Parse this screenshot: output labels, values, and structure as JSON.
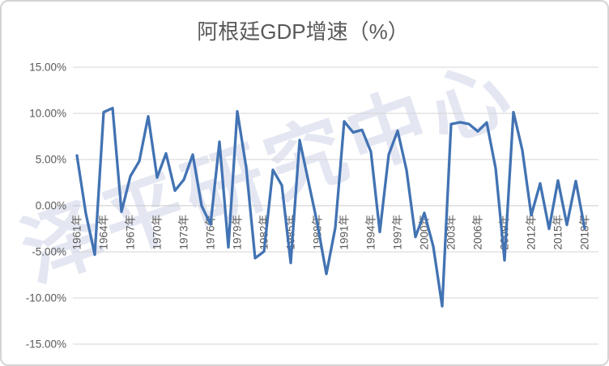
{
  "page": {
    "background": "#ffffff",
    "border_color": "#d4d4d4"
  },
  "chart_data": {
    "type": "line",
    "title": "阿根廷GDP增速（%）",
    "series_name": "阿根廷GDP增速",
    "unit": "%",
    "years": [
      1961,
      1962,
      1963,
      1964,
      1965,
      1966,
      1967,
      1968,
      1969,
      1970,
      1971,
      1972,
      1973,
      1974,
      1975,
      1976,
      1977,
      1978,
      1979,
      1980,
      1981,
      1982,
      1983,
      1984,
      1985,
      1986,
      1987,
      1988,
      1989,
      1990,
      1991,
      1992,
      1993,
      1994,
      1995,
      1996,
      1997,
      1998,
      1999,
      2000,
      2001,
      2002,
      2003,
      2004,
      2005,
      2006,
      2007,
      2008,
      2009,
      2010,
      2011,
      2012,
      2013,
      2014,
      2015,
      2016,
      2017,
      2018
    ],
    "values": [
      5.43,
      -0.85,
      -5.31,
      10.13,
      10.57,
      -0.66,
      3.19,
      4.82,
      9.68,
      3.05,
      5.66,
      1.63,
      2.81,
      5.53,
      -0.03,
      -2.02,
      6.93,
      -4.51,
      10.22,
      4.15,
      -5.69,
      -4.96,
      3.88,
      2.21,
      -6.2,
      7.1,
      2.56,
      -2.0,
      -7.4,
      -2.4,
      9.13,
      7.94,
      8.21,
      5.84,
      -2.85,
      5.53,
      8.11,
      3.85,
      -3.39,
      -0.79,
      -4.41,
      -10.89,
      8.84,
      9.03,
      8.85,
      8.05,
      9.01,
      4.06,
      -5.92,
      10.13,
      6.0,
      -1.03,
      2.41,
      -2.51,
      2.73,
      -2.08,
      2.67,
      -2.48
    ],
    "ylim": [
      -15,
      15
    ],
    "y_tick_values": [
      15,
      10,
      5,
      0,
      -5,
      -10,
      -15
    ],
    "y_tick_labels": [
      "15.00%",
      "10.00%",
      "5.00%",
      "0.00%",
      "-5.00%",
      "-10.00%",
      "-15.00%"
    ],
    "x_tick_labels": [
      "1961年",
      "1964年",
      "1967年",
      "1970年",
      "1973年",
      "1976年",
      "1979年",
      "1982年",
      "1985年",
      "1988年",
      "1991年",
      "1994年",
      "1997年",
      "2000年",
      "2003年",
      "2006年",
      "2009年",
      "2012年",
      "2015年",
      "2018年"
    ],
    "grid": "horizontal",
    "legend": "none",
    "line_color": "#4273b3",
    "gridline_color": "#d6d6d6",
    "axis_line_color": "#c8c8c8",
    "axis_text_color": "#595959",
    "title_color": "#595959",
    "watermark": {
      "text": "泽平研究中心",
      "color": "#e4e7f2"
    }
  }
}
